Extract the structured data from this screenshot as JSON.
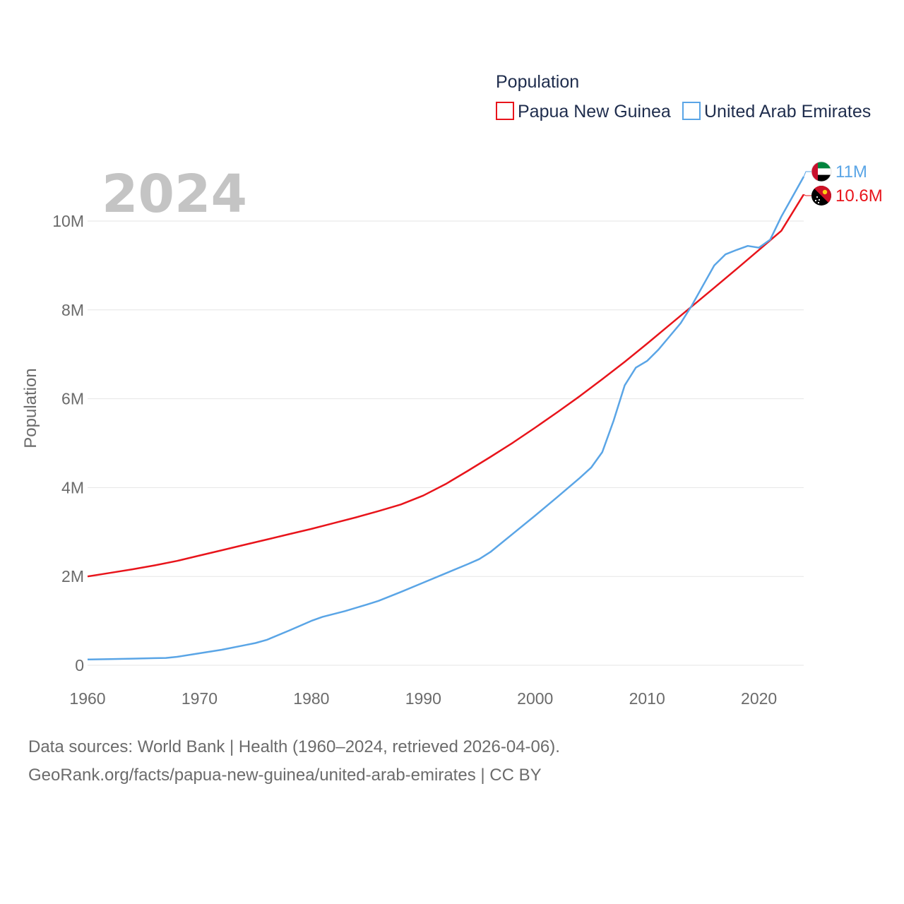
{
  "chart_data": {
    "type": "line",
    "year_label": "2024",
    "legend": {
      "title": "Population",
      "position": "top-right"
    },
    "ylabel": "Population",
    "xlabel": "",
    "xlim": [
      1960,
      2024
    ],
    "ylim": [
      0,
      10000000
    ],
    "grid": true,
    "x_ticks": [
      "1960",
      "1970",
      "1980",
      "1990",
      "2000",
      "2010",
      "2020"
    ],
    "y_ticks": [
      {
        "value": 0,
        "label": "0"
      },
      {
        "value": 2000000,
        "label": "2M"
      },
      {
        "value": 4000000,
        "label": "4M"
      },
      {
        "value": 6000000,
        "label": "6M"
      },
      {
        "value": 8000000,
        "label": "8M"
      },
      {
        "value": 10000000,
        "label": "10M"
      }
    ],
    "series": [
      {
        "name": "Papua New Guinea",
        "color": "#e8141b",
        "end_label": "10.6M",
        "flag_icon": "papua-new-guinea-flag-icon",
        "points": [
          [
            1960,
            2000000
          ],
          [
            1962,
            2080000
          ],
          [
            1964,
            2160000
          ],
          [
            1966,
            2250000
          ],
          [
            1968,
            2350000
          ],
          [
            1970,
            2470000
          ],
          [
            1972,
            2590000
          ],
          [
            1974,
            2710000
          ],
          [
            1976,
            2830000
          ],
          [
            1978,
            2950000
          ],
          [
            1980,
            3070000
          ],
          [
            1982,
            3200000
          ],
          [
            1984,
            3330000
          ],
          [
            1986,
            3470000
          ],
          [
            1988,
            3620000
          ],
          [
            1990,
            3820000
          ],
          [
            1992,
            4080000
          ],
          [
            1994,
            4380000
          ],
          [
            1996,
            4690000
          ],
          [
            1998,
            5010000
          ],
          [
            2000,
            5350000
          ],
          [
            2002,
            5700000
          ],
          [
            2004,
            6060000
          ],
          [
            2006,
            6440000
          ],
          [
            2008,
            6830000
          ],
          [
            2010,
            7240000
          ],
          [
            2012,
            7660000
          ],
          [
            2014,
            8080000
          ],
          [
            2016,
            8500000
          ],
          [
            2018,
            8920000
          ],
          [
            2020,
            9350000
          ],
          [
            2022,
            9780000
          ],
          [
            2024,
            10600000
          ]
        ]
      },
      {
        "name": "United Arab Emirates",
        "color": "#5aa5e6",
        "end_label": "11M",
        "flag_icon": "united-arab-emirates-flag-icon",
        "points": [
          [
            1960,
            130000
          ],
          [
            1962,
            140000
          ],
          [
            1964,
            150000
          ],
          [
            1966,
            160000
          ],
          [
            1967,
            165000
          ],
          [
            1968,
            190000
          ],
          [
            1970,
            270000
          ],
          [
            1972,
            350000
          ],
          [
            1974,
            450000
          ],
          [
            1975,
            500000
          ],
          [
            1976,
            570000
          ],
          [
            1978,
            780000
          ],
          [
            1980,
            1000000
          ],
          [
            1981,
            1090000
          ],
          [
            1983,
            1220000
          ],
          [
            1985,
            1370000
          ],
          [
            1986,
            1450000
          ],
          [
            1988,
            1650000
          ],
          [
            1990,
            1860000
          ],
          [
            1992,
            2070000
          ],
          [
            1994,
            2280000
          ],
          [
            1995,
            2390000
          ],
          [
            1996,
            2550000
          ],
          [
            1998,
            2960000
          ],
          [
            2000,
            3370000
          ],
          [
            2002,
            3790000
          ],
          [
            2004,
            4220000
          ],
          [
            2005,
            4450000
          ],
          [
            2006,
            4800000
          ],
          [
            2007,
            5500000
          ],
          [
            2008,
            6300000
          ],
          [
            2009,
            6700000
          ],
          [
            2010,
            6850000
          ],
          [
            2011,
            7100000
          ],
          [
            2012,
            7400000
          ],
          [
            2013,
            7700000
          ],
          [
            2014,
            8100000
          ],
          [
            2015,
            8550000
          ],
          [
            2016,
            9000000
          ],
          [
            2017,
            9250000
          ],
          [
            2018,
            9350000
          ],
          [
            2019,
            9440000
          ],
          [
            2020,
            9400000
          ],
          [
            2021,
            9580000
          ],
          [
            2022,
            10100000
          ],
          [
            2023,
            10550000
          ],
          [
            2024,
            11000000
          ]
        ]
      }
    ]
  },
  "footer": {
    "source_line": "Data sources: World Bank | Health (1960–2024, retrieved 2026-04-06).",
    "url_line": "GeoRank.org/facts/papua-new-guinea/united-arab-emirates | CC BY"
  }
}
